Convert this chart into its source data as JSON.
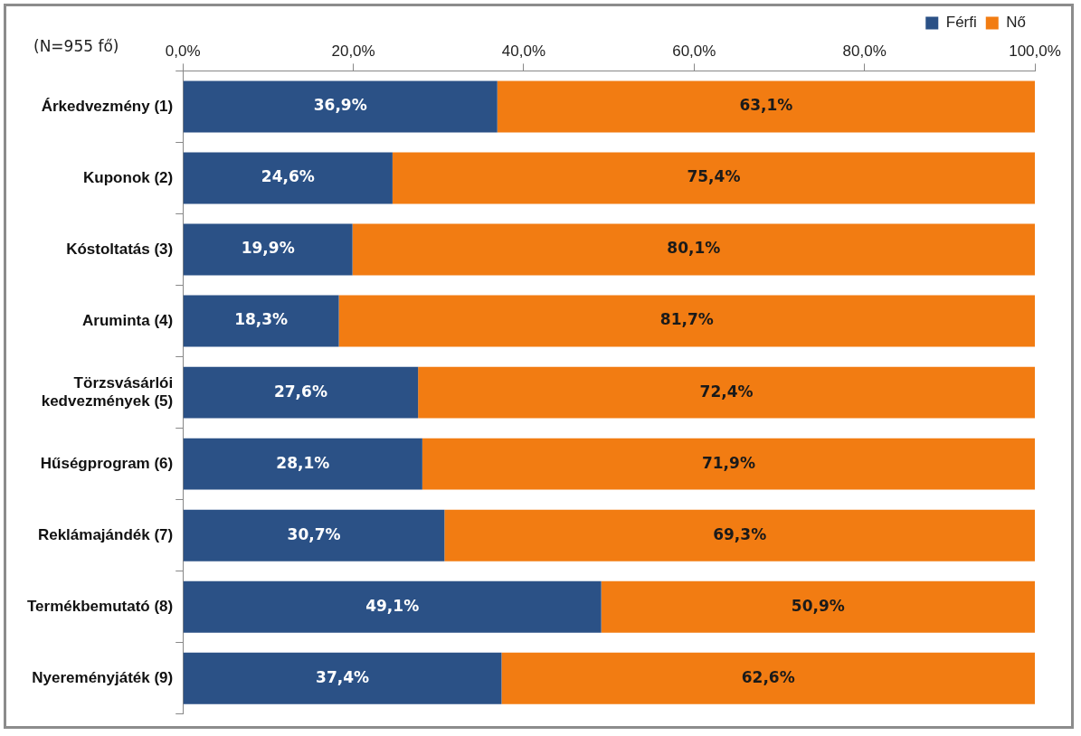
{
  "chart_data": {
    "type": "bar",
    "orientation": "horizontal",
    "stacked": true,
    "annotations": [
      "(N=955 fő)"
    ],
    "categories": [
      "Árkedvezmény (1)",
      "Kuponok (2)",
      "Kóstoltatás (3)",
      "Aruminta (4)",
      "Törzsvásárlói kedvezmények (5)",
      "Hűségprogram (6)",
      "Reklámajándék (7)",
      "Termékbemutató (8)",
      "Nyereményjáték (9)"
    ],
    "series": [
      {
        "name": "Férfi",
        "color": "#2b5186",
        "values": [
          36.9,
          24.6,
          19.9,
          18.3,
          27.6,
          28.1,
          30.7,
          49.1,
          37.4
        ],
        "value_labels": [
          "36,9%",
          "24,6%",
          "19,9%",
          "18,3%",
          "27,6%",
          "28,1%",
          "30,7%",
          "49,1%",
          "37,4%"
        ]
      },
      {
        "name": "Nő",
        "color": "#f27c12",
        "values": [
          63.1,
          75.4,
          80.1,
          81.7,
          72.4,
          71.9,
          69.3,
          50.9,
          62.6
        ],
        "value_labels": [
          "63,1%",
          "75,4%",
          "80,1%",
          "81,7%",
          "72,4%",
          "71,9%",
          "69,3%",
          "50,9%",
          "62,6%"
        ]
      }
    ],
    "xlim": [
      0,
      100
    ],
    "xticks": [
      {
        "value": 0,
        "label": "0,0%"
      },
      {
        "value": 20,
        "label": "20,0%"
      },
      {
        "value": 40,
        "label": "40,0%"
      },
      {
        "value": 60,
        "label": "60,0%"
      },
      {
        "value": 80,
        "label": "80,0%"
      },
      {
        "value": 100,
        "label": "100,0%"
      }
    ],
    "grid": false,
    "legend": "top right"
  }
}
